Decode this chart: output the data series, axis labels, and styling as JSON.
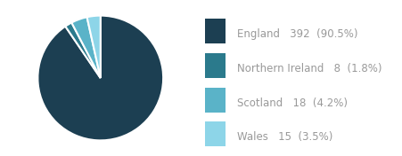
{
  "labels": [
    "England",
    "Northern Ireland",
    "Scotland",
    "Wales"
  ],
  "values": [
    392,
    8,
    18,
    15
  ],
  "colors": [
    "#1c3f52",
    "#2b7a8c",
    "#5ab3c8",
    "#8dd5e8"
  ],
  "legend_labels": [
    [
      "England",
      "392",
      "(90.5%)"
    ],
    [
      "Northern Ireland",
      "8",
      "(1.8%)"
    ],
    [
      "Scotland",
      "18",
      "(4.2%)"
    ],
    [
      "Wales",
      "15",
      "(3.5%)"
    ]
  ],
  "background_color": "#ffffff",
  "text_color": "#999999",
  "bold_color": "#333333",
  "legend_fontsize": 8.5,
  "wedge_linewidth": 1.5,
  "wedge_linecolor": "white",
  "startangle": 90
}
